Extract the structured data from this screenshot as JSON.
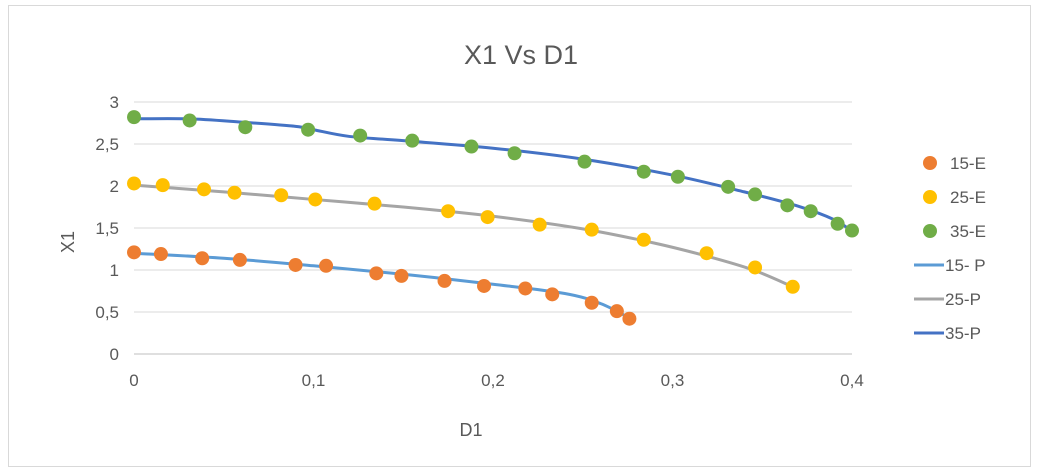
{
  "chart_data": {
    "type": "scatter",
    "title": "X1 Vs D1",
    "xlabel": "D1",
    "ylabel": "X1",
    "xlim": [
      0,
      0.4
    ],
    "ylim": [
      0,
      3
    ],
    "x_ticks": [
      "0",
      "0,1",
      "0,2",
      "0,3",
      "0,4"
    ],
    "y_ticks": [
      "0",
      "0,5",
      "1",
      "1,5",
      "2",
      "2,5",
      "3"
    ],
    "grid": "horizontal",
    "legend_position": "right",
    "series": [
      {
        "name": "15-E",
        "kind": "points",
        "color": "#ed7d31",
        "points": [
          [
            0,
            1.21
          ],
          [
            0.015,
            1.19
          ],
          [
            0.038,
            1.14
          ],
          [
            0.059,
            1.12
          ],
          [
            0.09,
            1.06
          ],
          [
            0.107,
            1.05
          ],
          [
            0.135,
            0.96
          ],
          [
            0.149,
            0.93
          ],
          [
            0.173,
            0.87
          ],
          [
            0.195,
            0.81
          ],
          [
            0.218,
            0.78
          ],
          [
            0.233,
            0.71
          ],
          [
            0.255,
            0.61
          ],
          [
            0.269,
            0.51
          ],
          [
            0.276,
            0.42
          ]
        ]
      },
      {
        "name": "25-E",
        "kind": "points",
        "color": "#ffc000",
        "points": [
          [
            0,
            2.03
          ],
          [
            0.016,
            2.01
          ],
          [
            0.039,
            1.96
          ],
          [
            0.056,
            1.92
          ],
          [
            0.082,
            1.89
          ],
          [
            0.101,
            1.84
          ],
          [
            0.134,
            1.79
          ],
          [
            0.175,
            1.7
          ],
          [
            0.197,
            1.63
          ],
          [
            0.226,
            1.54
          ],
          [
            0.255,
            1.48
          ],
          [
            0.284,
            1.36
          ],
          [
            0.319,
            1.2
          ],
          [
            0.346,
            1.03
          ],
          [
            0.367,
            0.8
          ]
        ]
      },
      {
        "name": "35-E",
        "kind": "points",
        "color": "#70ad47",
        "points": [
          [
            0,
            2.82
          ],
          [
            0.031,
            2.78
          ],
          [
            0.062,
            2.7
          ],
          [
            0.097,
            2.67
          ],
          [
            0.126,
            2.6
          ],
          [
            0.155,
            2.54
          ],
          [
            0.188,
            2.47
          ],
          [
            0.212,
            2.39
          ],
          [
            0.251,
            2.29
          ],
          [
            0.284,
            2.17
          ],
          [
            0.303,
            2.11
          ],
          [
            0.331,
            1.99
          ],
          [
            0.346,
            1.9
          ],
          [
            0.364,
            1.77
          ],
          [
            0.377,
            1.7
          ],
          [
            0.392,
            1.55
          ],
          [
            0.4,
            1.47
          ]
        ]
      },
      {
        "name": "15- P",
        "kind": "line",
        "color": "#5b9bd5",
        "points": [
          [
            0,
            1.2
          ],
          [
            0.05,
            1.14
          ],
          [
            0.1,
            1.05
          ],
          [
            0.15,
            0.95
          ],
          [
            0.2,
            0.83
          ],
          [
            0.24,
            0.72
          ],
          [
            0.26,
            0.6
          ],
          [
            0.275,
            0.44
          ]
        ]
      },
      {
        "name": "25-P",
        "kind": "line",
        "color": "#a5a5a5",
        "points": [
          [
            0,
            2.01
          ],
          [
            0.05,
            1.93
          ],
          [
            0.1,
            1.84
          ],
          [
            0.15,
            1.75
          ],
          [
            0.2,
            1.64
          ],
          [
            0.25,
            1.49
          ],
          [
            0.29,
            1.32
          ],
          [
            0.32,
            1.16
          ],
          [
            0.345,
            1.0
          ],
          [
            0.366,
            0.81
          ]
        ]
      },
      {
        "name": "35-P",
        "kind": "line",
        "color": "#4472c4",
        "points": [
          [
            0,
            2.8
          ],
          [
            0.03,
            2.8
          ],
          [
            0.06,
            2.76
          ],
          [
            0.09,
            2.71
          ],
          [
            0.1,
            2.67
          ],
          [
            0.12,
            2.59
          ],
          [
            0.15,
            2.54
          ],
          [
            0.2,
            2.45
          ],
          [
            0.25,
            2.32
          ],
          [
            0.3,
            2.13
          ],
          [
            0.34,
            1.93
          ],
          [
            0.37,
            1.76
          ],
          [
            0.39,
            1.6
          ],
          [
            0.4,
            1.46
          ]
        ]
      }
    ]
  }
}
